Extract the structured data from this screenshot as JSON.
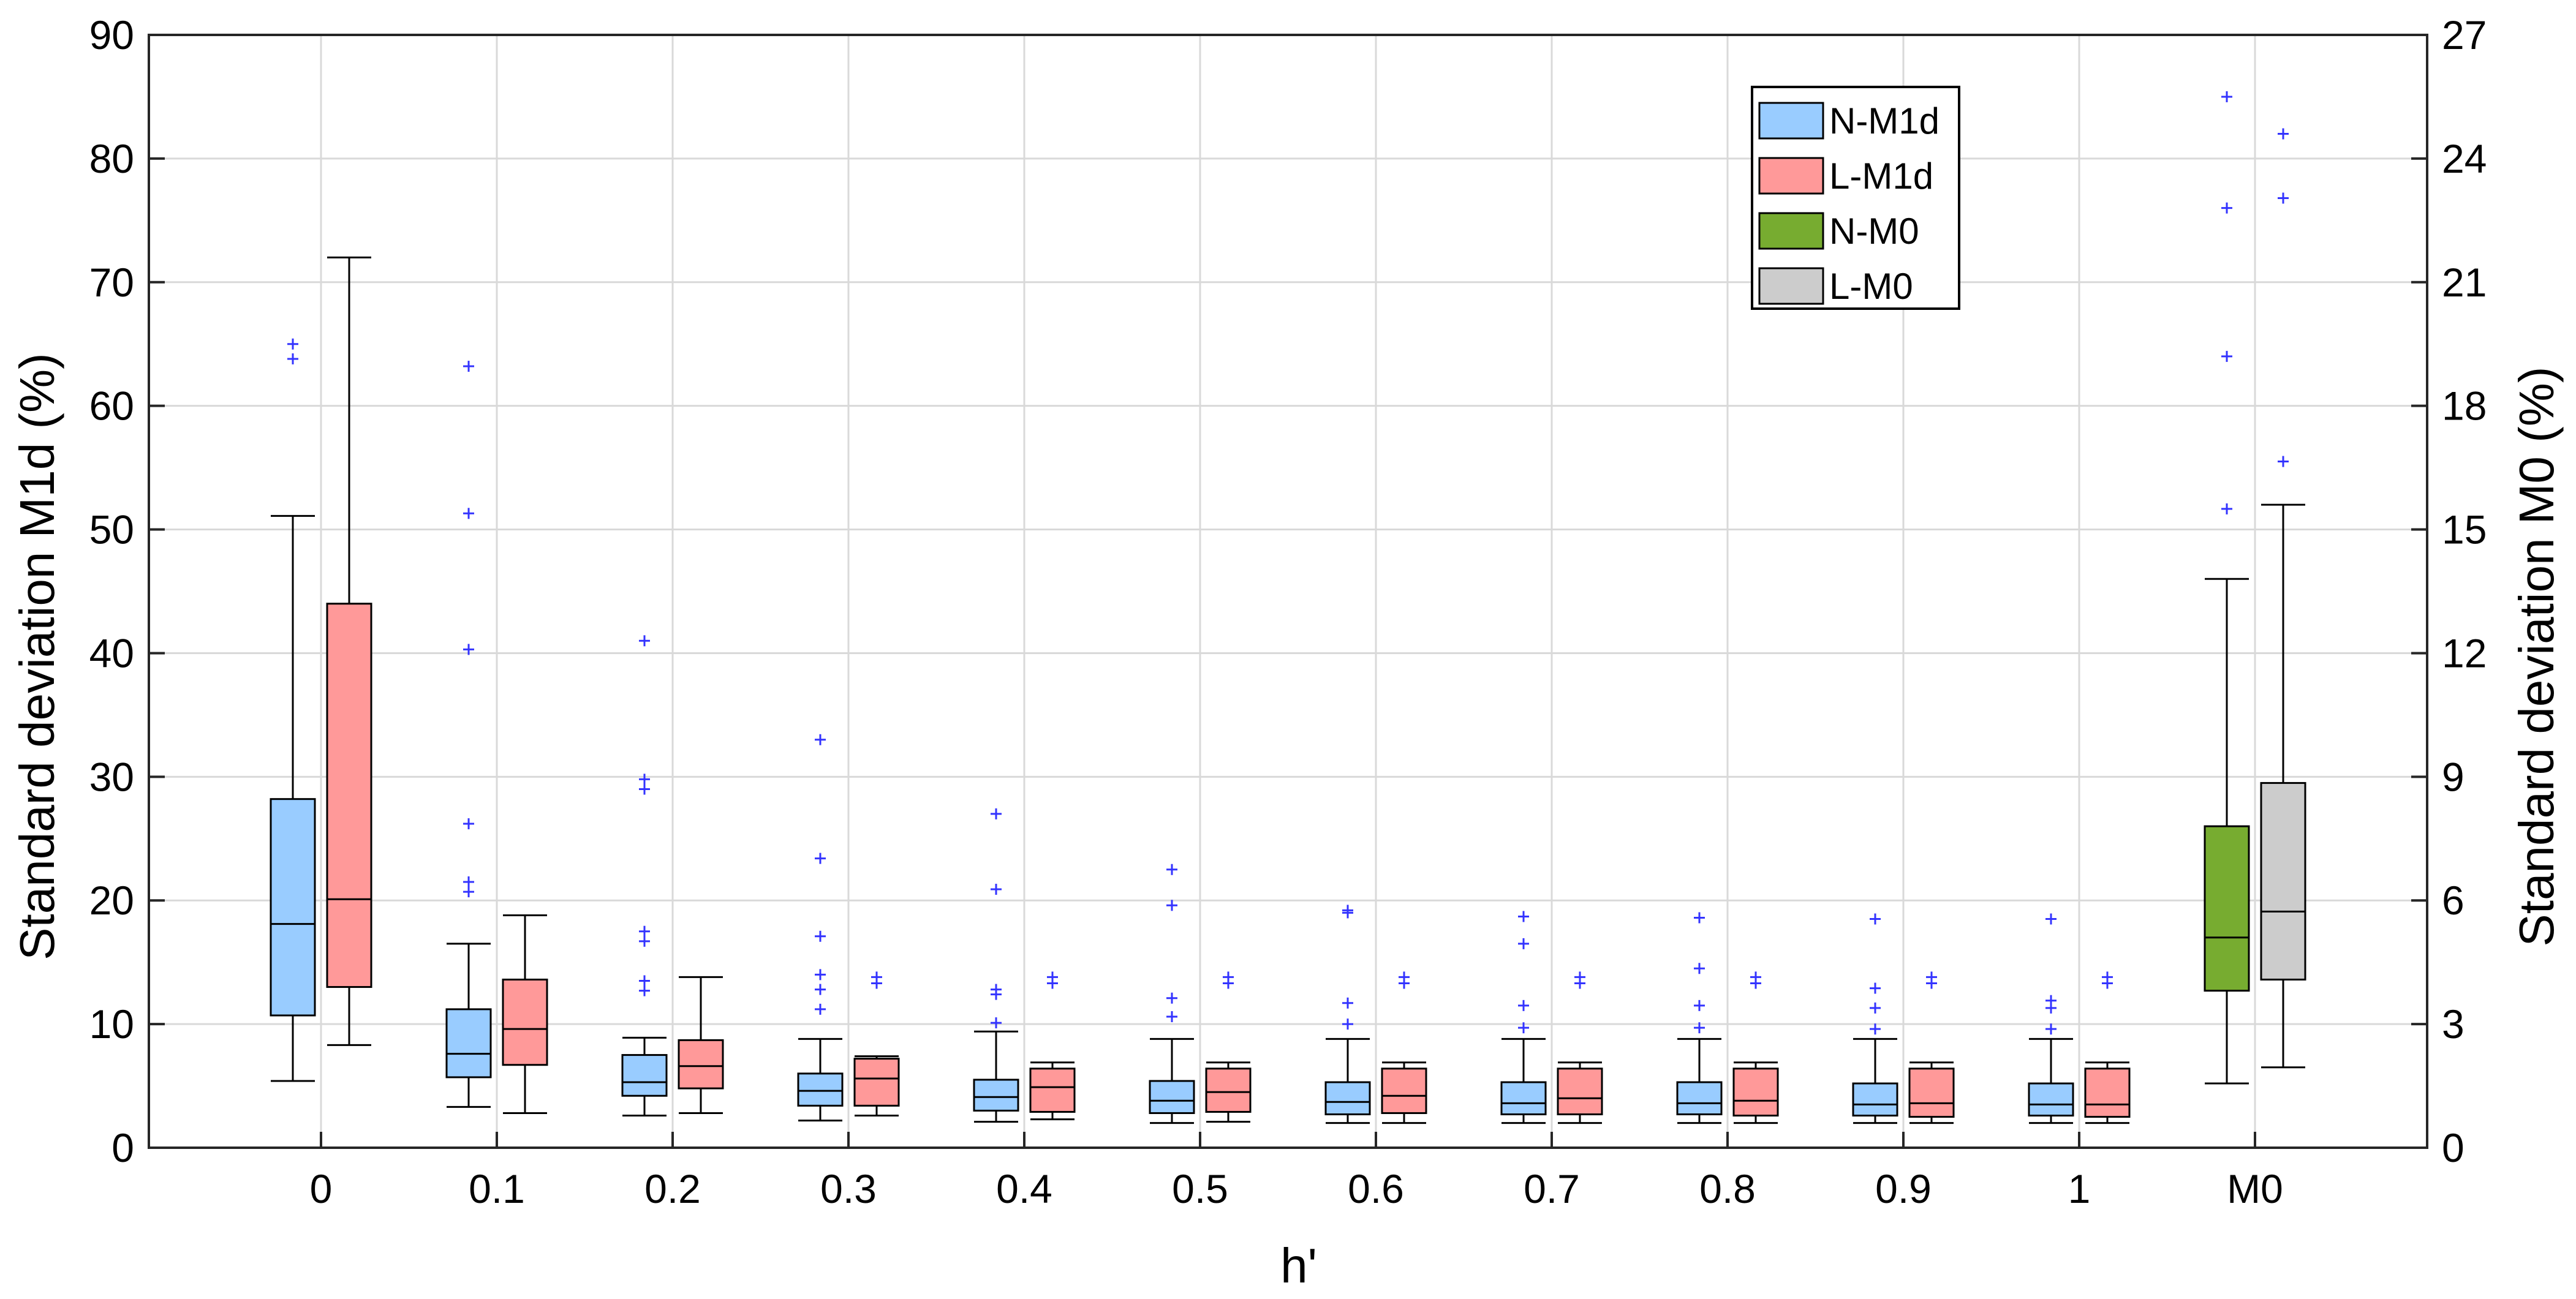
{
  "chart_data": {
    "type": "box",
    "xlabel": "h'",
    "ylabel_left": "Standard deviation M1d (%)",
    "ylabel_right": "Standard deviation M0 (%)",
    "ylim_left": [
      0,
      90
    ],
    "ylim_right": [
      0,
      27
    ],
    "yticks_left": [
      "0",
      "10",
      "20",
      "30",
      "40",
      "50",
      "60",
      "70",
      "80",
      "90"
    ],
    "yticks_right": [
      "0",
      "3",
      "6",
      "9",
      "12",
      "15",
      "18",
      "21",
      "24",
      "27"
    ],
    "categories": [
      "0",
      "0.1",
      "0.2",
      "0.3",
      "0.4",
      "0.5",
      "0.6",
      "0.7",
      "0.8",
      "0.9",
      "1",
      "M0"
    ],
    "grid": true,
    "legend_position": "top-right",
    "series": [
      {
        "name": "N-M1d",
        "color": "#99ccff",
        "axis": "left",
        "boxes": [
          {
            "category": "0",
            "min": 5.4,
            "q1": 10.7,
            "median": 18.1,
            "q3": 28.2,
            "max": 51.1,
            "outliers": [
              63.8,
              65.0
            ]
          },
          {
            "category": "0.1",
            "min": 3.3,
            "q1": 5.7,
            "median": 7.6,
            "q3": 11.2,
            "max": 16.5,
            "outliers": [
              20.7,
              21.5,
              26.2,
              40.3,
              51.3,
              63.2
            ]
          },
          {
            "category": "0.2",
            "min": 2.6,
            "q1": 4.2,
            "median": 5.3,
            "q3": 7.5,
            "max": 8.9,
            "outliers": [
              12.7,
              13.5,
              16.7,
              17.5,
              29.0,
              29.8,
              41.0
            ]
          },
          {
            "category": "0.3",
            "min": 2.2,
            "q1": 3.4,
            "median": 4.6,
            "q3": 6.0,
            "max": 8.8,
            "outliers": [
              11.2,
              12.8,
              14.0,
              17.1,
              23.4,
              33.0
            ]
          },
          {
            "category": "0.4",
            "min": 2.1,
            "q1": 3.0,
            "median": 4.1,
            "q3": 5.5,
            "max": 9.4,
            "outliers": [
              10.1,
              12.4,
              12.8,
              20.9,
              27.0
            ]
          },
          {
            "category": "0.5",
            "min": 2.0,
            "q1": 2.8,
            "median": 3.8,
            "q3": 5.4,
            "max": 8.8,
            "outliers": [
              10.6,
              12.1,
              19.6,
              22.5
            ]
          },
          {
            "category": "0.6",
            "min": 2.0,
            "q1": 2.7,
            "median": 3.7,
            "q3": 5.3,
            "max": 8.8,
            "outliers": [
              10.0,
              11.7,
              19.0,
              19.2
            ]
          },
          {
            "category": "0.7",
            "min": 2.0,
            "q1": 2.7,
            "median": 3.6,
            "q3": 5.3,
            "max": 8.8,
            "outliers": [
              9.7,
              11.5,
              16.5,
              18.7
            ]
          },
          {
            "category": "0.8",
            "min": 2.0,
            "q1": 2.7,
            "median": 3.6,
            "q3": 5.3,
            "max": 8.8,
            "outliers": [
              9.7,
              11.5,
              14.5,
              18.6
            ]
          },
          {
            "category": "0.9",
            "min": 2.0,
            "q1": 2.6,
            "median": 3.5,
            "q3": 5.2,
            "max": 8.8,
            "outliers": [
              9.6,
              11.3,
              12.9,
              18.5
            ]
          },
          {
            "category": "1",
            "min": 2.0,
            "q1": 2.6,
            "median": 3.5,
            "q3": 5.2,
            "max": 8.8,
            "outliers": [
              9.6,
              11.3,
              11.9,
              18.5
            ]
          }
        ]
      },
      {
        "name": "L-M1d",
        "color": "#ff9999",
        "axis": "left",
        "boxes": [
          {
            "category": "0",
            "min": 8.3,
            "q1": 13.0,
            "median": 20.1,
            "q3": 44.0,
            "max": 72.0,
            "outliers": []
          },
          {
            "category": "0.1",
            "min": 2.8,
            "q1": 6.7,
            "median": 9.6,
            "q3": 13.6,
            "max": 18.8,
            "outliers": []
          },
          {
            "category": "0.2",
            "min": 2.8,
            "q1": 4.8,
            "median": 6.6,
            "q3": 8.7,
            "max": 13.8,
            "outliers": []
          },
          {
            "category": "0.3",
            "min": 2.6,
            "q1": 3.4,
            "median": 5.6,
            "q3": 7.2,
            "max": 7.4,
            "outliers": [
              13.3,
              13.8
            ]
          },
          {
            "category": "0.4",
            "min": 2.3,
            "q1": 2.9,
            "median": 4.9,
            "q3": 6.4,
            "max": 6.9,
            "outliers": [
              13.3,
              13.8
            ]
          },
          {
            "category": "0.5",
            "min": 2.1,
            "q1": 2.9,
            "median": 4.5,
            "q3": 6.4,
            "max": 6.9,
            "outliers": [
              13.3,
              13.8
            ]
          },
          {
            "category": "0.6",
            "min": 2.0,
            "q1": 2.8,
            "median": 4.2,
            "q3": 6.4,
            "max": 6.9,
            "outliers": [
              13.3,
              13.8
            ]
          },
          {
            "category": "0.7",
            "min": 2.0,
            "q1": 2.7,
            "median": 4.0,
            "q3": 6.4,
            "max": 6.9,
            "outliers": [
              13.3,
              13.8
            ]
          },
          {
            "category": "0.8",
            "min": 2.0,
            "q1": 2.6,
            "median": 3.8,
            "q3": 6.4,
            "max": 6.9,
            "outliers": [
              13.3,
              13.8
            ]
          },
          {
            "category": "0.9",
            "min": 2.0,
            "q1": 2.5,
            "median": 3.6,
            "q3": 6.4,
            "max": 6.9,
            "outliers": [
              13.3,
              13.8
            ]
          },
          {
            "category": "1",
            "min": 2.0,
            "q1": 2.5,
            "median": 3.5,
            "q3": 6.4,
            "max": 6.9,
            "outliers": [
              13.3,
              13.8
            ]
          }
        ]
      },
      {
        "name": "N-M0",
        "color": "#77ac30",
        "axis": "right",
        "boxes": [
          {
            "category": "M0",
            "min": 1.56,
            "q1": 3.81,
            "median": 5.1,
            "q3": 7.8,
            "max": 13.8,
            "outliers": [
              15.5,
              19.2,
              22.8,
              25.5
            ]
          }
        ]
      },
      {
        "name": "L-M0",
        "color": "#cccccc",
        "axis": "right",
        "boxes": [
          {
            "category": "M0",
            "min": 1.95,
            "q1": 4.08,
            "median": 5.73,
            "q3": 8.85,
            "max": 15.6,
            "outliers": [
              16.65,
              23.04,
              24.6
            ]
          }
        ]
      }
    ]
  }
}
